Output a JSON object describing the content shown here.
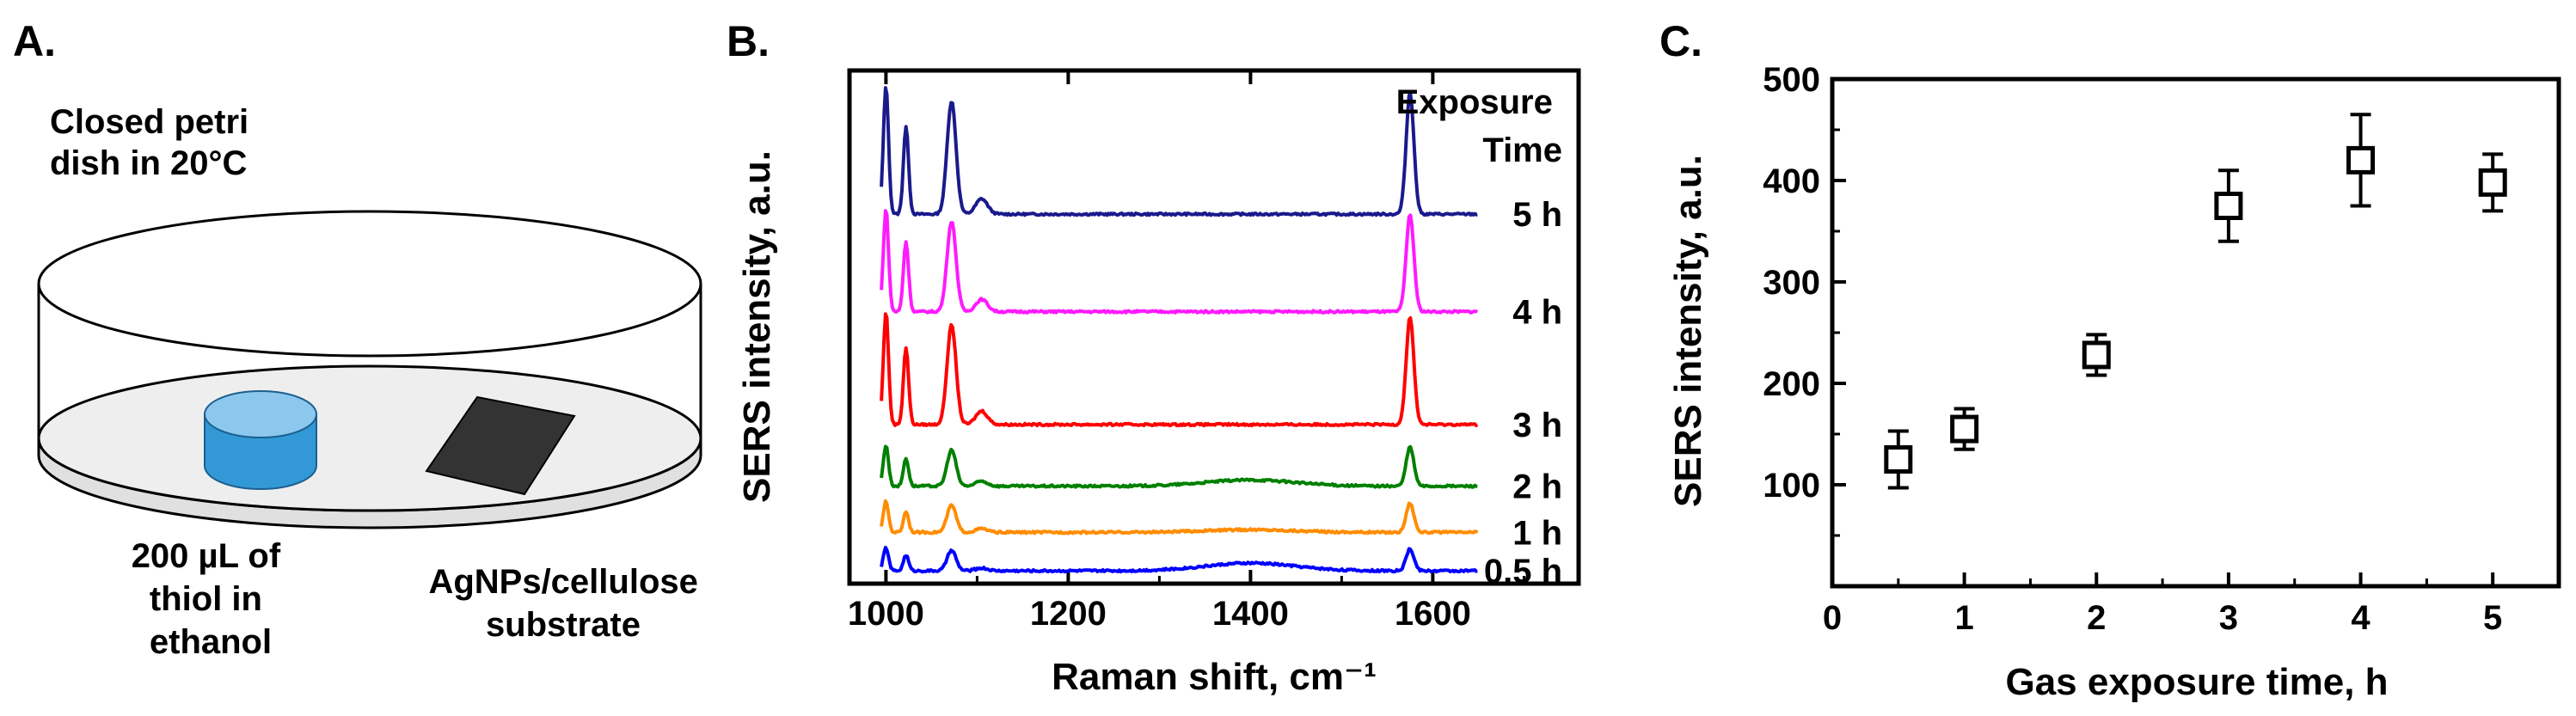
{
  "panel_a": {
    "letter": "A.",
    "dish_label": [
      "Closed petri",
      "dish in 20°C"
    ],
    "thiol_label": [
      "200 µL of",
      "thiol in",
      "ethanol"
    ],
    "substrate_label": [
      "AgNPs/cellulose",
      "substrate"
    ],
    "colors": {
      "thiol_liquid": "#3399d6",
      "substrate": "#333333",
      "dish_floor": "#eeeeee"
    }
  },
  "panel_b": {
    "letter": "B.",
    "legend_title": [
      "Exposure",
      "Time"
    ]
  },
  "panel_c": {
    "letter": "C."
  },
  "chart_data": [
    {
      "type": "line",
      "title": "",
      "xlabel": "Raman shift, cm⁻¹",
      "ylabel": "SERS intensity, a.u.",
      "xlim": [
        960,
        1760
      ],
      "x_ticks": [
        1000,
        1200,
        1400,
        1600
      ],
      "y_ticks": [],
      "grid": false,
      "peak_positions": [
        1000,
        1022,
        1072,
        1105,
        1400,
        1575
      ],
      "series": [
        {
          "name": "5 h",
          "color": "#1a1a8c",
          "offset": 0.72,
          "scale": 0.25,
          "broad": 0.0
        },
        {
          "name": "4 h",
          "color": "#ff1aff",
          "offset": 0.53,
          "scale": 0.2,
          "broad": 0.0
        },
        {
          "name": "3 h",
          "color": "#ff0000",
          "offset": 0.31,
          "scale": 0.22,
          "broad": 0.0
        },
        {
          "name": "2 h",
          "color": "#008000",
          "offset": 0.19,
          "scale": 0.08,
          "broad": 0.012
        },
        {
          "name": "1 h",
          "color": "#ff8c00",
          "offset": 0.1,
          "scale": 0.06,
          "broad": 0.005
        },
        {
          "name": "0.5 h",
          "color": "#0000ff",
          "offset": 0.025,
          "scale": 0.045,
          "broad": 0.015
        }
      ]
    },
    {
      "type": "scatter",
      "title": "",
      "xlabel": "Gas exposure time, h",
      "ylabel": "SERS intensity, a.u.",
      "xlim": [
        0,
        5.5
      ],
      "ylim": [
        0,
        500
      ],
      "x_ticks": [
        0,
        1,
        2,
        3,
        4,
        5
      ],
      "y_ticks": [
        100,
        200,
        300,
        400,
        500
      ],
      "grid": false,
      "marker": "open-square",
      "points": [
        {
          "x": 0.5,
          "y": 125,
          "err": 28
        },
        {
          "x": 1,
          "y": 155,
          "err": 20
        },
        {
          "x": 2,
          "y": 228,
          "err": 20
        },
        {
          "x": 3,
          "y": 375,
          "err": 35
        },
        {
          "x": 4,
          "y": 420,
          "err": 45
        },
        {
          "x": 5,
          "y": 398,
          "err": 28
        }
      ]
    }
  ]
}
